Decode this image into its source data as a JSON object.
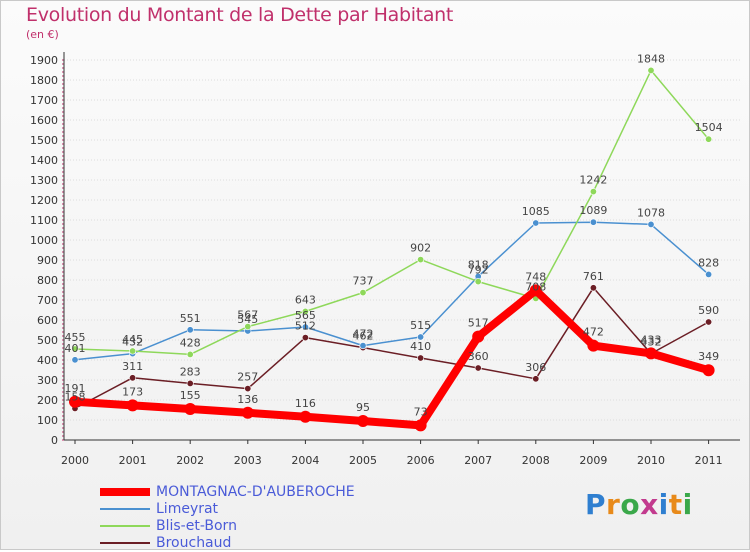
{
  "title": "Evolution du Montant de la Dette par Habitant",
  "subtitle": "(en €)",
  "logo": {
    "text": "Proxiti",
    "letter_colors": [
      "#2f7fd0",
      "#e88a1a",
      "#3aa84a",
      "#c23a8e",
      "#2f7fd0",
      "#e88a1a",
      "#3aa84a"
    ]
  },
  "chart_data": {
    "type": "line",
    "title": "Evolution du Montant de la Dette par Habitant",
    "subtitle": "(en €)",
    "x": [
      "2000",
      "2001",
      "2002",
      "2003",
      "2004",
      "2005",
      "2006",
      "2007",
      "2008",
      "2009",
      "2010",
      "2011"
    ],
    "yticks": [
      "0",
      "100",
      "200",
      "300",
      "400",
      "500",
      "600",
      "700",
      "800",
      "900",
      "1000",
      "1100",
      "1200",
      "1300",
      "1400",
      "1500",
      "1600",
      "1700",
      "1800",
      "1900"
    ],
    "ylim": [
      0,
      1900
    ],
    "grid": "horizontal",
    "legend_position": "bottom-left",
    "series": [
      {
        "name": "MONTAGNAC-D'AUBEROCHE",
        "color": "#ff0000",
        "values": [
          191,
          173,
          155,
          136,
          116,
          95,
          73,
          517,
          748,
          472,
          433,
          349
        ]
      },
      {
        "name": "Limeyrat",
        "color": "#4a90d0",
        "values": [
          401,
          432,
          551,
          545,
          565,
          472,
          515,
          818,
          1085,
          1089,
          1078,
          828
        ]
      },
      {
        "name": "Blis-et-Born",
        "color": "#8ed85a",
        "values": [
          455,
          445,
          428,
          567,
          643,
          737,
          902,
          792,
          708,
          1242,
          1848,
          1504
        ]
      },
      {
        "name": "Brouchaud",
        "color": "#6b1e25",
        "values": [
          158,
          311,
          283,
          257,
          512,
          462,
          410,
          360,
          306,
          761,
          432,
          590
        ]
      }
    ]
  }
}
